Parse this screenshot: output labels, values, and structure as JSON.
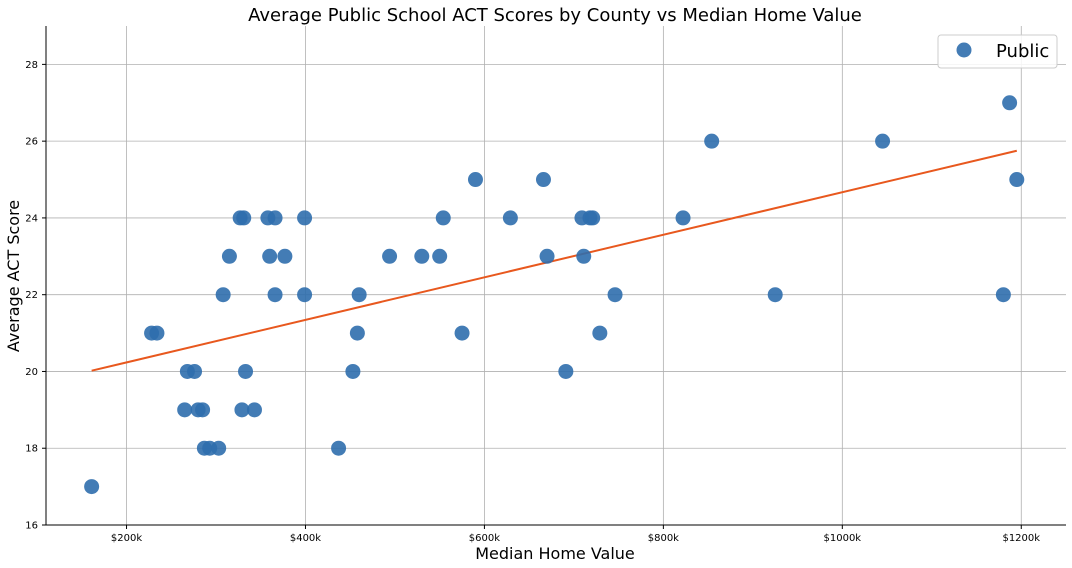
{
  "chart_data": {
    "type": "scatter",
    "title": "Average Public School ACT Scores by County vs Median Home Value",
    "xlabel": "Median Home Value",
    "ylabel": "Average ACT Score",
    "xlim": [
      110000,
      1250000
    ],
    "ylim": [
      16,
      29
    ],
    "x_ticks": [
      200000,
      400000,
      600000,
      800000,
      1000000,
      1200000
    ],
    "x_tick_labels": [
      "$200k",
      "$400k",
      "$600k",
      "$800k",
      "$1000k",
      "$1200k"
    ],
    "y_ticks": [
      16,
      18,
      20,
      22,
      24,
      26,
      28
    ],
    "y_tick_labels": [
      "16",
      "18",
      "20",
      "22",
      "24",
      "26",
      "28"
    ],
    "grid": true,
    "legend_position": "top-right",
    "series": [
      {
        "name": "Public",
        "color": "#2f6ead",
        "points": [
          [
            161000,
            17
          ],
          [
            228000,
            21
          ],
          [
            234000,
            21
          ],
          [
            265000,
            19
          ],
          [
            268000,
            20
          ],
          [
            276000,
            20
          ],
          [
            280000,
            19
          ],
          [
            285000,
            19
          ],
          [
            287000,
            18
          ],
          [
            293000,
            18
          ],
          [
            303000,
            18
          ],
          [
            308000,
            22
          ],
          [
            315000,
            23
          ],
          [
            327000,
            24
          ],
          [
            331000,
            24
          ],
          [
            329000,
            19
          ],
          [
            333000,
            20
          ],
          [
            343000,
            19
          ],
          [
            358000,
            24
          ],
          [
            360000,
            23
          ],
          [
            366000,
            24
          ],
          [
            366000,
            22
          ],
          [
            377000,
            23
          ],
          [
            399000,
            24
          ],
          [
            399000,
            22
          ],
          [
            437000,
            18
          ],
          [
            453000,
            20
          ],
          [
            458000,
            21
          ],
          [
            460000,
            22
          ],
          [
            494000,
            23
          ],
          [
            530000,
            23
          ],
          [
            550000,
            23
          ],
          [
            554000,
            24
          ],
          [
            575000,
            21
          ],
          [
            590000,
            25
          ],
          [
            629000,
            24
          ],
          [
            666000,
            25
          ],
          [
            670000,
            23
          ],
          [
            691000,
            20
          ],
          [
            709000,
            24
          ],
          [
            711000,
            23
          ],
          [
            718000,
            24
          ],
          [
            721000,
            24
          ],
          [
            729000,
            21
          ],
          [
            746000,
            22
          ],
          [
            822000,
            24
          ],
          [
            854000,
            26
          ],
          [
            925000,
            22
          ],
          [
            1045000,
            26
          ],
          [
            1180000,
            22
          ],
          [
            1187000,
            27
          ],
          [
            1195000,
            25
          ]
        ]
      }
    ],
    "trendline": {
      "color": "#e8581e",
      "x": [
        161000,
        1195000
      ],
      "y": [
        20.02,
        25.75
      ]
    }
  }
}
